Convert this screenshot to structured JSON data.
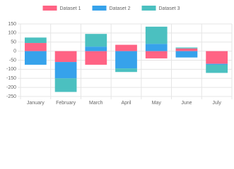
{
  "chart_data": {
    "type": "bar",
    "stacked": true,
    "categories": [
      "January",
      "February",
      "March",
      "April",
      "May",
      "June",
      "July"
    ],
    "series": [
      {
        "name": "Dataset 1",
        "color": "#ff6384",
        "values": [
          45,
          -60,
          -75,
          35,
          -40,
          15,
          -70
        ]
      },
      {
        "name": "Dataset 2",
        "color": "#36a2eb",
        "values": [
          -75,
          -90,
          25,
          -95,
          40,
          -35,
          -5
        ]
      },
      {
        "name": "Dataset 3",
        "color": "#4bc0c0",
        "values": [
          30,
          -75,
          70,
          -20,
          95,
          5,
          -45
        ]
      }
    ],
    "ylim": [
      -250,
      150
    ],
    "yticks": [
      -250,
      -200,
      -150,
      -100,
      -50,
      0,
      50,
      100,
      150
    ],
    "grid": true,
    "legend": "top"
  }
}
